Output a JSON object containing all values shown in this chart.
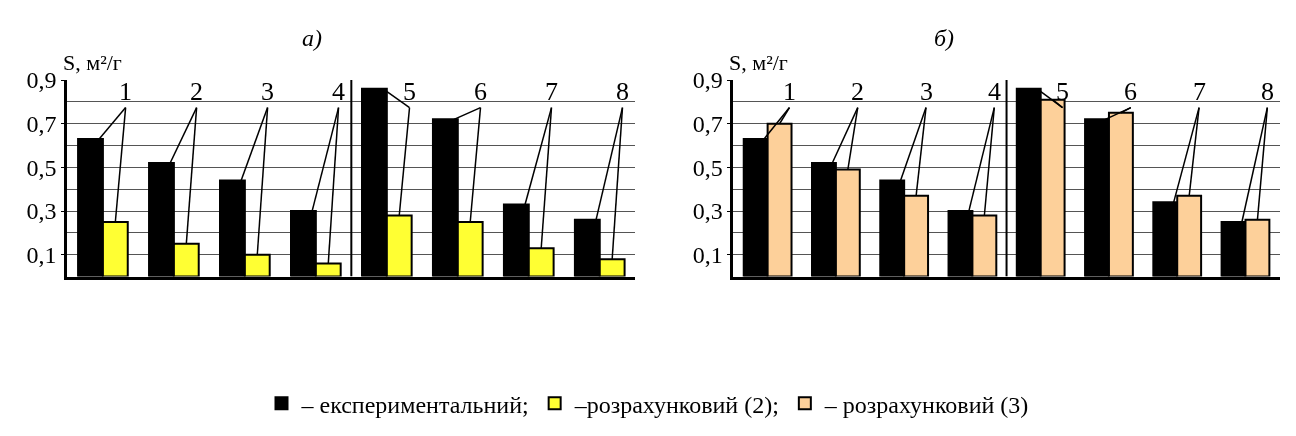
{
  "chart_data": [
    {
      "type": "bar",
      "title": "а)",
      "ylabel": "S, м²/г",
      "categories": [
        null,
        null,
        null,
        null,
        null,
        null,
        null,
        null
      ],
      "series": [
        {
          "name": "– експериментальний;",
          "color": "#000000",
          "values": [
            0.63,
            0.52,
            0.44,
            0.3,
            0.86,
            0.72,
            0.33,
            0.26
          ]
        },
        {
          "name": "–розрахунковий (2);",
          "color": "#ffff33",
          "values": [
            0.25,
            0.15,
            0.1,
            0.06,
            0.28,
            0.25,
            0.13,
            0.08
          ]
        }
      ],
      "annotations": [
        "1",
        "2",
        "3",
        "4",
        "5",
        "6",
        "7",
        "8"
      ],
      "ylim": [
        0,
        0.9
      ],
      "yticks": [
        {
          "value": 0.1,
          "label": "0,1"
        },
        {
          "value": 0.2,
          "label": null
        },
        {
          "value": 0.3,
          "label": "0,3"
        },
        {
          "value": 0.4,
          "label": null
        },
        {
          "value": 0.5,
          "label": "0,5"
        },
        {
          "value": 0.6,
          "label": null
        },
        {
          "value": 0.7,
          "label": "0,7"
        },
        {
          "value": 0.8,
          "label": null
        },
        {
          "value": 0.9,
          "label": "0,9"
        }
      ],
      "grid": "y",
      "legend": "bottom"
    },
    {
      "type": "bar",
      "title": "б)",
      "ylabel": "S, м²/г",
      "categories": [
        null,
        null,
        null,
        null,
        null,
        null,
        null,
        null
      ],
      "series": [
        {
          "color": "#000000",
          "values": [
            0.63,
            0.52,
            0.44,
            0.3,
            0.86,
            0.72,
            0.34,
            0.25
          ]
        },
        {
          "name": "– розрахунковий (3)",
          "color": "#fdd09a",
          "values": [
            0.7,
            0.49,
            0.37,
            0.28,
            0.81,
            0.75,
            0.37,
            0.26
          ]
        }
      ],
      "annotations": [
        "1",
        "2",
        "3",
        "4",
        "5",
        "6",
        "7",
        "8"
      ],
      "ylim": [
        0,
        0.9
      ],
      "yticks": [
        {
          "value": 0.1,
          "label": "0,1"
        },
        {
          "value": 0.2,
          "label": null
        },
        {
          "value": 0.3,
          "label": "0,3"
        },
        {
          "value": 0.4,
          "label": null
        },
        {
          "value": 0.5,
          "label": "0,5"
        },
        {
          "value": 0.6,
          "label": null
        },
        {
          "value": 0.7,
          "label": "0,7"
        },
        {
          "value": 0.8,
          "label": null
        },
        {
          "value": 0.9,
          "label": "0,9"
        }
      ],
      "grid": "y",
      "legend": "bottom"
    }
  ]
}
